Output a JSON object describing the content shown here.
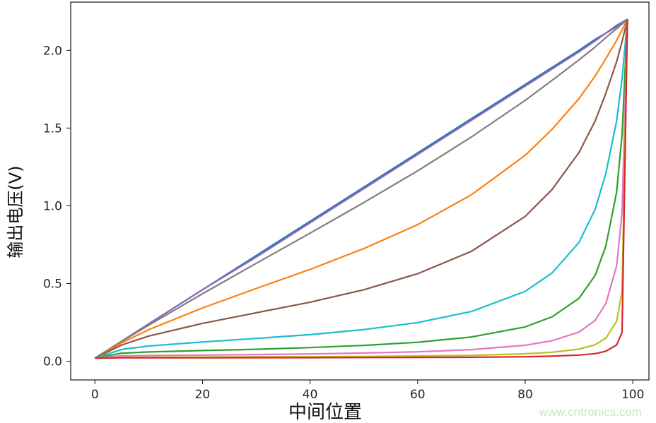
{
  "chart_data": {
    "type": "line",
    "title": "",
    "xlabel": "中间位置",
    "ylabel": "输出电压(V)",
    "xlim": [
      -4.5,
      103
    ],
    "ylim": [
      -0.12,
      2.31
    ],
    "xticks": [
      "0",
      "20",
      "40",
      "60",
      "80",
      "100"
    ],
    "yticks": [
      "0.0",
      "0.5",
      "1.0",
      "1.5",
      "2.0"
    ],
    "grid": false,
    "legend": "none",
    "x": [
      0,
      5,
      10,
      20,
      30,
      40,
      50,
      60,
      70,
      80,
      85,
      90,
      93,
      95,
      97,
      98,
      99
    ],
    "series": [
      {
        "color": "#1f77b4",
        "values": [
          0.02,
          0.13,
          0.24,
          0.46,
          0.68,
          0.9,
          1.12,
          1.34,
          1.56,
          1.78,
          1.89,
          2.0,
          2.07,
          2.11,
          2.16,
          2.18,
          2.2
        ]
      },
      {
        "color": "#9467bd",
        "values": [
          0.02,
          0.13,
          0.24,
          0.46,
          0.67,
          0.89,
          1.11,
          1.33,
          1.55,
          1.77,
          1.88,
          1.99,
          2.06,
          2.11,
          2.15,
          2.18,
          2.2
        ]
      },
      {
        "color": "#7f7f7f",
        "values": [
          0.02,
          0.128,
          0.232,
          0.434,
          0.63,
          0.824,
          1.021,
          1.225,
          1.443,
          1.678,
          1.807,
          1.939,
          2.021,
          2.082,
          2.139,
          2.169,
          2.2
        ]
      },
      {
        "color": "#ff7f0e",
        "values": [
          0.02,
          0.119,
          0.203,
          0.343,
          0.468,
          0.591,
          0.725,
          0.879,
          1.071,
          1.325,
          1.492,
          1.69,
          1.835,
          1.947,
          2.064,
          2.13,
          2.2
        ]
      },
      {
        "color": "#8c564b",
        "values": [
          0.02,
          0.105,
          0.162,
          0.244,
          0.312,
          0.38,
          0.46,
          0.563,
          0.707,
          0.932,
          1.105,
          1.343,
          1.545,
          1.724,
          1.927,
          2.056,
          2.2
        ]
      },
      {
        "color": "#17becf",
        "values": [
          0.02,
          0.076,
          0.098,
          0.124,
          0.147,
          0.171,
          0.204,
          0.249,
          0.32,
          0.45,
          0.568,
          0.765,
          0.977,
          1.209,
          1.546,
          1.818,
          2.2
        ]
      },
      {
        "color": "#2ca02c",
        "values": [
          0.02,
          0.052,
          0.06,
          0.069,
          0.077,
          0.088,
          0.102,
          0.122,
          0.156,
          0.221,
          0.286,
          0.405,
          0.552,
          0.742,
          1.088,
          1.459,
          2.2
        ]
      },
      {
        "color": "#e377c2",
        "values": [
          0.02,
          0.035,
          0.037,
          0.04,
          0.043,
          0.047,
          0.053,
          0.061,
          0.075,
          0.103,
          0.132,
          0.188,
          0.263,
          0.372,
          0.613,
          0.958,
          2.2
        ]
      },
      {
        "color": "#bcbd22",
        "values": [
          0.02,
          0.025,
          0.026,
          0.027,
          0.028,
          0.029,
          0.031,
          0.034,
          0.038,
          0.048,
          0.058,
          0.078,
          0.106,
          0.149,
          0.257,
          0.452,
          2.2
        ]
      },
      {
        "color": "#d62728",
        "values": [
          0.02,
          0.022,
          0.022,
          0.022,
          0.023,
          0.023,
          0.024,
          0.025,
          0.026,
          0.029,
          0.033,
          0.04,
          0.049,
          0.065,
          0.105,
          0.186,
          2.2
        ]
      }
    ]
  },
  "watermark": "www.cntronics.com"
}
